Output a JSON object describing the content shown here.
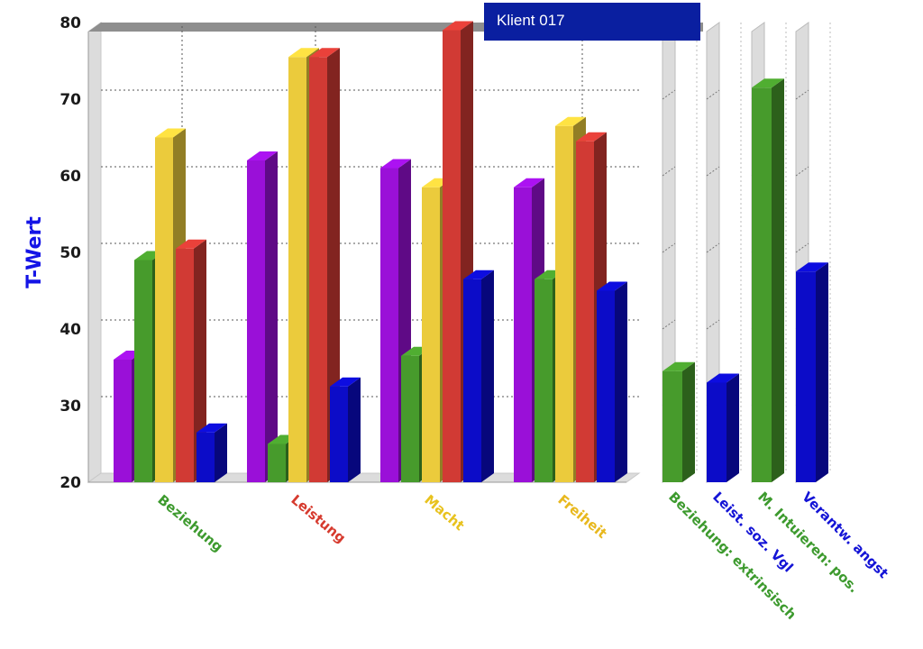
{
  "client_label": "Klient 017",
  "chart_data": [
    {
      "type": "bar",
      "ylabel": "T-Wert",
      "ylim": [
        20,
        80
      ],
      "yticks": [
        20,
        30,
        40,
        50,
        60,
        70,
        80
      ],
      "categories": [
        "Beziehung",
        "Leistung",
        "Macht",
        "Freiheit"
      ],
      "category_colors": [
        "#3d9a2e",
        "#d63a2e",
        "#e8c21e",
        "#e8b81e"
      ],
      "series": [
        {
          "color": "#9a10d8",
          "values": [
            36,
            62,
            61,
            58.5
          ]
        },
        {
          "color": "#479b2c",
          "values": [
            49,
            25,
            36.5,
            46.5
          ]
        },
        {
          "color": "#ebcb3c",
          "values": [
            65,
            75.5,
            58.5,
            66.5
          ]
        },
        {
          "color": "#d13a34",
          "values": [
            50.5,
            75.5,
            79,
            64.5
          ]
        },
        {
          "color": "#0c0cc8",
          "values": [
            26.5,
            32.5,
            46.5,
            45
          ]
        }
      ],
      "grid": true,
      "view": "3d"
    },
    {
      "type": "bar",
      "ylim": [
        20,
        80
      ],
      "categories": [
        "Beziehung: extrinsisch",
        "Leist. soz. Vgl",
        "M. Intuieren: pos.",
        "Verantw. angst"
      ],
      "category_colors": [
        "#3d9a2e",
        "#1414d6",
        "#3d9a2e",
        "#1414d6"
      ],
      "values": [
        34.5,
        33,
        71.5,
        47.5
      ],
      "colors": [
        "#479b2c",
        "#0c0cc8",
        "#479b2c",
        "#0c0cc8"
      ],
      "grid": true,
      "view": "3d"
    }
  ]
}
